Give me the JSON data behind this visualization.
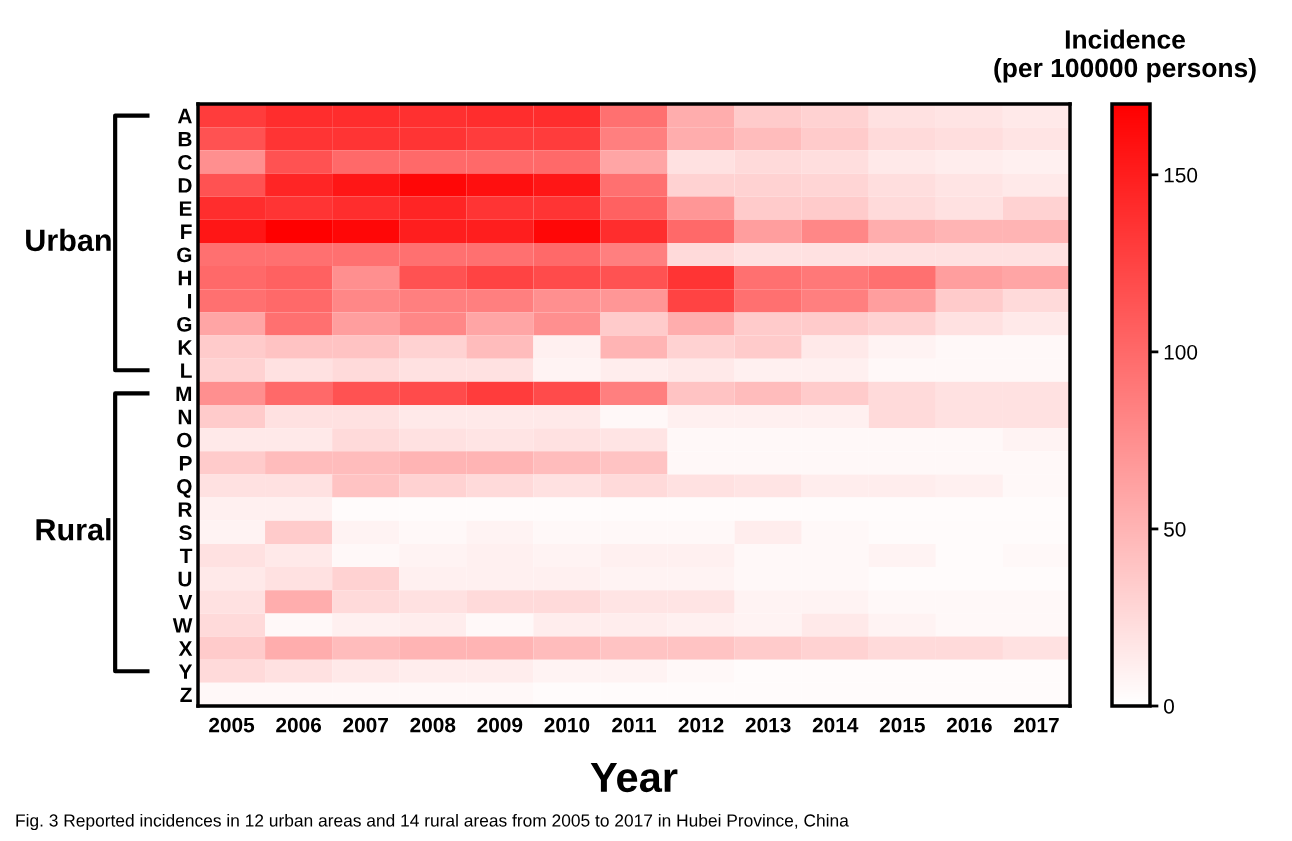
{
  "chart_data": {
    "type": "heatmap",
    "xlabel": "Year",
    "clabel": "Incidence\n(per 100000 persons)",
    "categories": [
      "2005",
      "2006",
      "2007",
      "2008",
      "2009",
      "2010",
      "2011",
      "2012",
      "2013",
      "2014",
      "2015",
      "2016",
      "2017"
    ],
    "y_categories": [
      "A",
      "B",
      "C",
      "D",
      "E",
      "F",
      "G",
      "H",
      "I",
      "G",
      "K",
      "L",
      "M",
      "N",
      "O",
      "P",
      "Q",
      "R",
      "S",
      "T",
      "U",
      "V",
      "W",
      "X",
      "Y",
      "Z"
    ],
    "cells": [
      [
        130,
        140,
        140,
        138,
        140,
        140,
        95,
        55,
        35,
        30,
        20,
        18,
        15
      ],
      [
        115,
        135,
        135,
        135,
        130,
        130,
        85,
        55,
        45,
        35,
        25,
        22,
        18
      ],
      [
        75,
        115,
        100,
        100,
        100,
        100,
        60,
        20,
        25,
        22,
        15,
        12,
        10
      ],
      [
        115,
        145,
        155,
        165,
        160,
        155,
        95,
        30,
        30,
        28,
        22,
        18,
        15
      ],
      [
        140,
        135,
        140,
        145,
        135,
        135,
        105,
        70,
        35,
        35,
        25,
        20,
        30
      ],
      [
        155,
        170,
        165,
        150,
        150,
        165,
        140,
        100,
        65,
        80,
        55,
        50,
        50
      ],
      [
        95,
        95,
        95,
        95,
        95,
        100,
        85,
        25,
        20,
        20,
        20,
        20,
        20
      ],
      [
        100,
        105,
        75,
        115,
        125,
        120,
        115,
        135,
        95,
        90,
        95,
        65,
        60
      ],
      [
        95,
        100,
        80,
        85,
        85,
        75,
        70,
        125,
        95,
        85,
        65,
        35,
        25
      ],
      [
        60,
        95,
        65,
        80,
        60,
        75,
        35,
        55,
        35,
        35,
        30,
        20,
        15
      ],
      [
        35,
        40,
        40,
        30,
        45,
        10,
        50,
        30,
        35,
        15,
        8,
        5,
        5
      ],
      [
        30,
        20,
        25,
        20,
        20,
        8,
        12,
        15,
        10,
        10,
        5,
        5,
        5
      ],
      [
        75,
        100,
        115,
        120,
        130,
        120,
        85,
        40,
        45,
        35,
        25,
        20,
        20
      ],
      [
        35,
        20,
        20,
        15,
        15,
        15,
        5,
        10,
        10,
        10,
        25,
        20,
        20
      ],
      [
        15,
        15,
        25,
        20,
        18,
        20,
        18,
        5,
        5,
        5,
        5,
        5,
        8
      ],
      [
        35,
        45,
        45,
        50,
        50,
        45,
        40,
        5,
        5,
        5,
        5,
        5,
        5
      ],
      [
        20,
        20,
        40,
        30,
        25,
        20,
        25,
        20,
        18,
        12,
        12,
        10,
        5
      ],
      [
        10,
        10,
        3,
        3,
        3,
        3,
        3,
        3,
        3,
        3,
        3,
        3,
        3
      ],
      [
        8,
        35,
        8,
        5,
        8,
        5,
        5,
        5,
        12,
        5,
        3,
        3,
        3
      ],
      [
        20,
        15,
        5,
        8,
        10,
        8,
        10,
        10,
        5,
        5,
        8,
        3,
        5
      ],
      [
        15,
        20,
        30,
        10,
        10,
        10,
        8,
        8,
        5,
        5,
        3,
        3,
        3
      ],
      [
        20,
        55,
        25,
        20,
        25,
        25,
        18,
        18,
        8,
        8,
        5,
        5,
        5
      ],
      [
        25,
        5,
        10,
        12,
        5,
        12,
        12,
        10,
        8,
        15,
        8,
        5,
        5
      ],
      [
        35,
        55,
        45,
        50,
        50,
        45,
        40,
        40,
        35,
        30,
        25,
        25,
        20
      ],
      [
        25,
        20,
        15,
        12,
        12,
        8,
        8,
        5,
        3,
        3,
        3,
        3,
        3
      ],
      [
        5,
        5,
        5,
        5,
        5,
        3,
        3,
        3,
        3,
        3,
        3,
        3,
        3
      ]
    ],
    "clim": [
      0,
      170
    ],
    "cticks": [
      0,
      50,
      100,
      150
    ],
    "colors": [
      "#ffffff",
      "#ff0000"
    ],
    "annotations": [
      "Urban",
      "Rural",
      "Fig. 3 Reported incidences in 12 urban areas and 14 rural areas from 2005 to 2017 in Hubei Province, China"
    ]
  }
}
